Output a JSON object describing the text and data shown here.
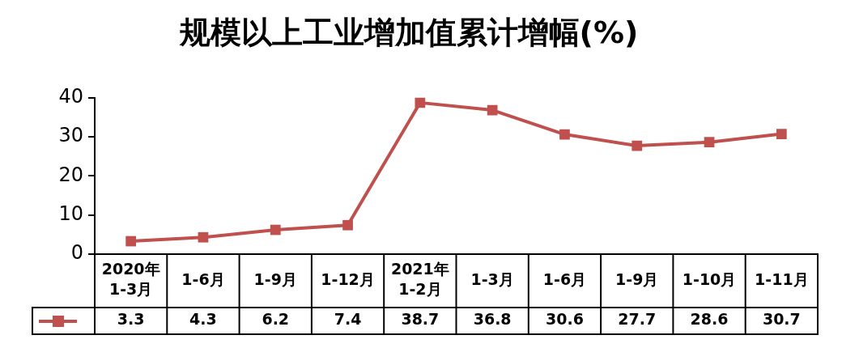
{
  "chart_data": {
    "type": "line",
    "title": "规模以上工业增加值累计增幅(%)",
    "categories": [
      "2020年\n1-3月",
      "1-6月",
      "1-9月",
      "1-12月",
      "2021年\n1-2月",
      "1-3月",
      "1-6月",
      "1-9月",
      "1-10月",
      "1-11月"
    ],
    "series": [
      {
        "color": "#c0504d",
        "values": [
          3.3,
          4.3,
          6.2,
          7.4,
          38.7,
          36.8,
          30.6,
          27.7,
          28.6,
          30.7
        ]
      }
    ],
    "ylim": [
      0,
      40
    ],
    "yticks": [
      0,
      10,
      20,
      30,
      40
    ],
    "marker": "square",
    "line_style": "solid",
    "data_labels": true,
    "grid": false
  }
}
